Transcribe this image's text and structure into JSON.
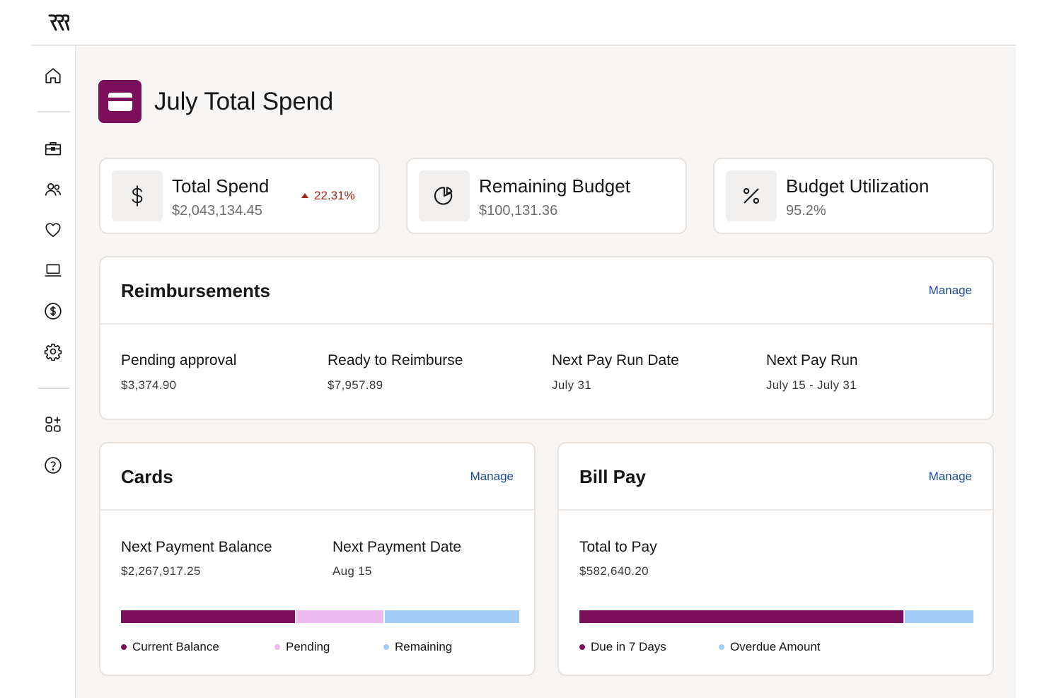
{
  "app": {
    "logo_icon": "brand-logo-icon"
  },
  "colors": {
    "brand": "#7b0f5b",
    "pending": "#ebb9ee",
    "remaining": "#a2cdf7",
    "link": "#1d4a8d",
    "negative_delta": "#a3271c"
  },
  "sidebar": {
    "items": [
      {
        "icon": "home-icon"
      },
      {
        "icon": "briefcase-icon"
      },
      {
        "icon": "people-icon"
      },
      {
        "icon": "heart-icon"
      },
      {
        "icon": "laptop-icon"
      },
      {
        "icon": "dollar-circle-icon"
      },
      {
        "icon": "gear-icon"
      },
      {
        "icon": "apps-add-icon"
      },
      {
        "icon": "help-icon"
      }
    ]
  },
  "page": {
    "title": "July Total Spend",
    "icon": "credit-card-icon"
  },
  "stats": [
    {
      "label": "Total Spend",
      "value": "$2,043,134.45",
      "delta": "22.31%",
      "icon": "dollar-icon"
    },
    {
      "label": "Remaining Budget",
      "value": "$100,131.36",
      "icon": "pie-chart-icon"
    },
    {
      "label": "Budget Utilization",
      "value": "95.2%",
      "icon": "percent-icon"
    }
  ],
  "reimbursements": {
    "title": "Reimbursements",
    "manage": "Manage",
    "metrics": [
      {
        "label": "Pending approval",
        "value": "$3,374.90"
      },
      {
        "label": "Ready to Reimburse",
        "value": "$7,957.89"
      },
      {
        "label": "Next Pay Run Date",
        "value": "July 31"
      },
      {
        "label": "Next Pay Run",
        "value": "July 15 - July 31"
      }
    ]
  },
  "cards": {
    "title": "Cards",
    "manage": "Manage",
    "metrics": [
      {
        "label": "Next Payment Balance",
        "value": "$2,267,917.25"
      },
      {
        "label": "Next Payment Date",
        "value": "Aug 15"
      }
    ],
    "breakdown": [
      {
        "name": "Current Balance",
        "fraction": 0.44,
        "color": "#7b0f5b"
      },
      {
        "name": "Pending",
        "fraction": 0.22,
        "color": "#ebb9ee"
      },
      {
        "name": "Remaining",
        "fraction": 0.34,
        "color": "#a2cdf7"
      }
    ]
  },
  "bill_pay": {
    "title": "Bill Pay",
    "manage": "Manage",
    "metrics": [
      {
        "label": "Total to Pay",
        "value": "$582,640.20"
      }
    ],
    "breakdown": [
      {
        "name": "Due in 7 Days",
        "fraction": 0.825,
        "color": "#7b0f5b"
      },
      {
        "name": "Overdue Amount",
        "fraction": 0.175,
        "color": "#a2cdf7"
      }
    ]
  }
}
